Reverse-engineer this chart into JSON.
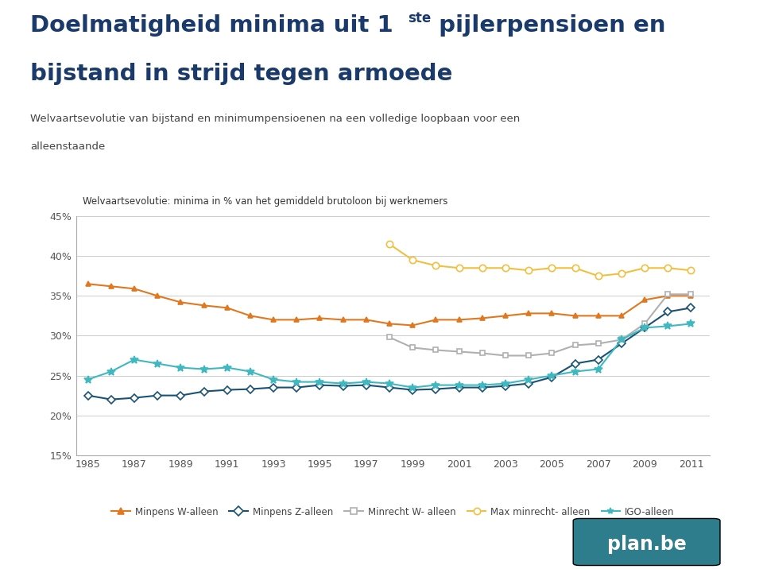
{
  "title_line1": "Doelmatigheid minima uit 1",
  "title_superscript": "ste",
  "title_line1_end": "pijlerpensioen en",
  "title_line2": "bijstand in strijd tegen armoede",
  "subtitle": "Welvaartsevolutie van bijstand en minimumpensioenen na een volledige loopbaan voor een alleenstaande",
  "chart_title": "Welvaartsevolutie: minima in % van het gemiddeld brutoloon bij werknemers",
  "background_color": "#ffffff",
  "sidebar_color": "#2e7d8c",
  "title_color": "#1a3a6b",
  "subtitle_color": "#444444",
  "years": [
    1985,
    1986,
    1987,
    1988,
    1989,
    1990,
    1991,
    1992,
    1993,
    1994,
    1995,
    1996,
    1997,
    1998,
    1999,
    2000,
    2001,
    2002,
    2003,
    2004,
    2005,
    2006,
    2007,
    2008,
    2009,
    2010,
    2011
  ],
  "minpens_W": [
    36.5,
    36.2,
    35.9,
    35.0,
    34.2,
    33.8,
    33.5,
    32.5,
    32.0,
    32.0,
    32.2,
    32.0,
    32.0,
    31.5,
    31.3,
    32.0,
    32.0,
    32.2,
    32.5,
    32.8,
    32.8,
    32.5,
    32.5,
    32.5,
    34.5,
    35.0,
    35.0
  ],
  "minpens_Z": [
    22.5,
    22.0,
    22.2,
    22.5,
    22.5,
    23.0,
    23.2,
    23.3,
    23.5,
    23.5,
    23.8,
    23.7,
    23.8,
    23.5,
    23.2,
    23.3,
    23.5,
    23.5,
    23.7,
    24.0,
    24.8,
    26.5,
    27.0,
    29.0,
    31.0,
    33.0,
    33.5
  ],
  "minrecht_W": [
    null,
    null,
    null,
    null,
    null,
    null,
    null,
    null,
    null,
    null,
    null,
    null,
    null,
    29.8,
    28.5,
    28.2,
    28.0,
    27.8,
    27.5,
    27.5,
    27.8,
    28.8,
    29.0,
    29.5,
    31.5,
    35.2,
    35.2
  ],
  "max_minrecht": [
    null,
    null,
    null,
    null,
    null,
    null,
    null,
    null,
    null,
    null,
    null,
    null,
    null,
    41.5,
    39.5,
    38.8,
    38.5,
    38.5,
    38.5,
    38.2,
    38.5,
    38.5,
    37.5,
    37.8,
    38.5,
    38.5,
    38.2
  ],
  "IGO": [
    24.5,
    25.5,
    27.0,
    26.5,
    26.0,
    25.8,
    26.0,
    25.5,
    24.5,
    24.2,
    24.2,
    24.0,
    24.2,
    24.0,
    23.5,
    23.8,
    23.8,
    23.8,
    24.0,
    24.5,
    25.0,
    25.5,
    25.8,
    29.5,
    31.0,
    31.2,
    31.5
  ],
  "colors": {
    "minpens_W": "#e07820",
    "minpens_Z": "#1a5276",
    "minrecht_W": "#b0b0b0",
    "max_minrecht": "#f0c040",
    "IGO": "#40b8c0"
  },
  "ylim": [
    15,
    45
  ],
  "yticks": [
    15,
    20,
    25,
    30,
    35,
    40,
    45
  ],
  "planbe_color": "#2e7d8c",
  "planbe_text": "plan.be"
}
